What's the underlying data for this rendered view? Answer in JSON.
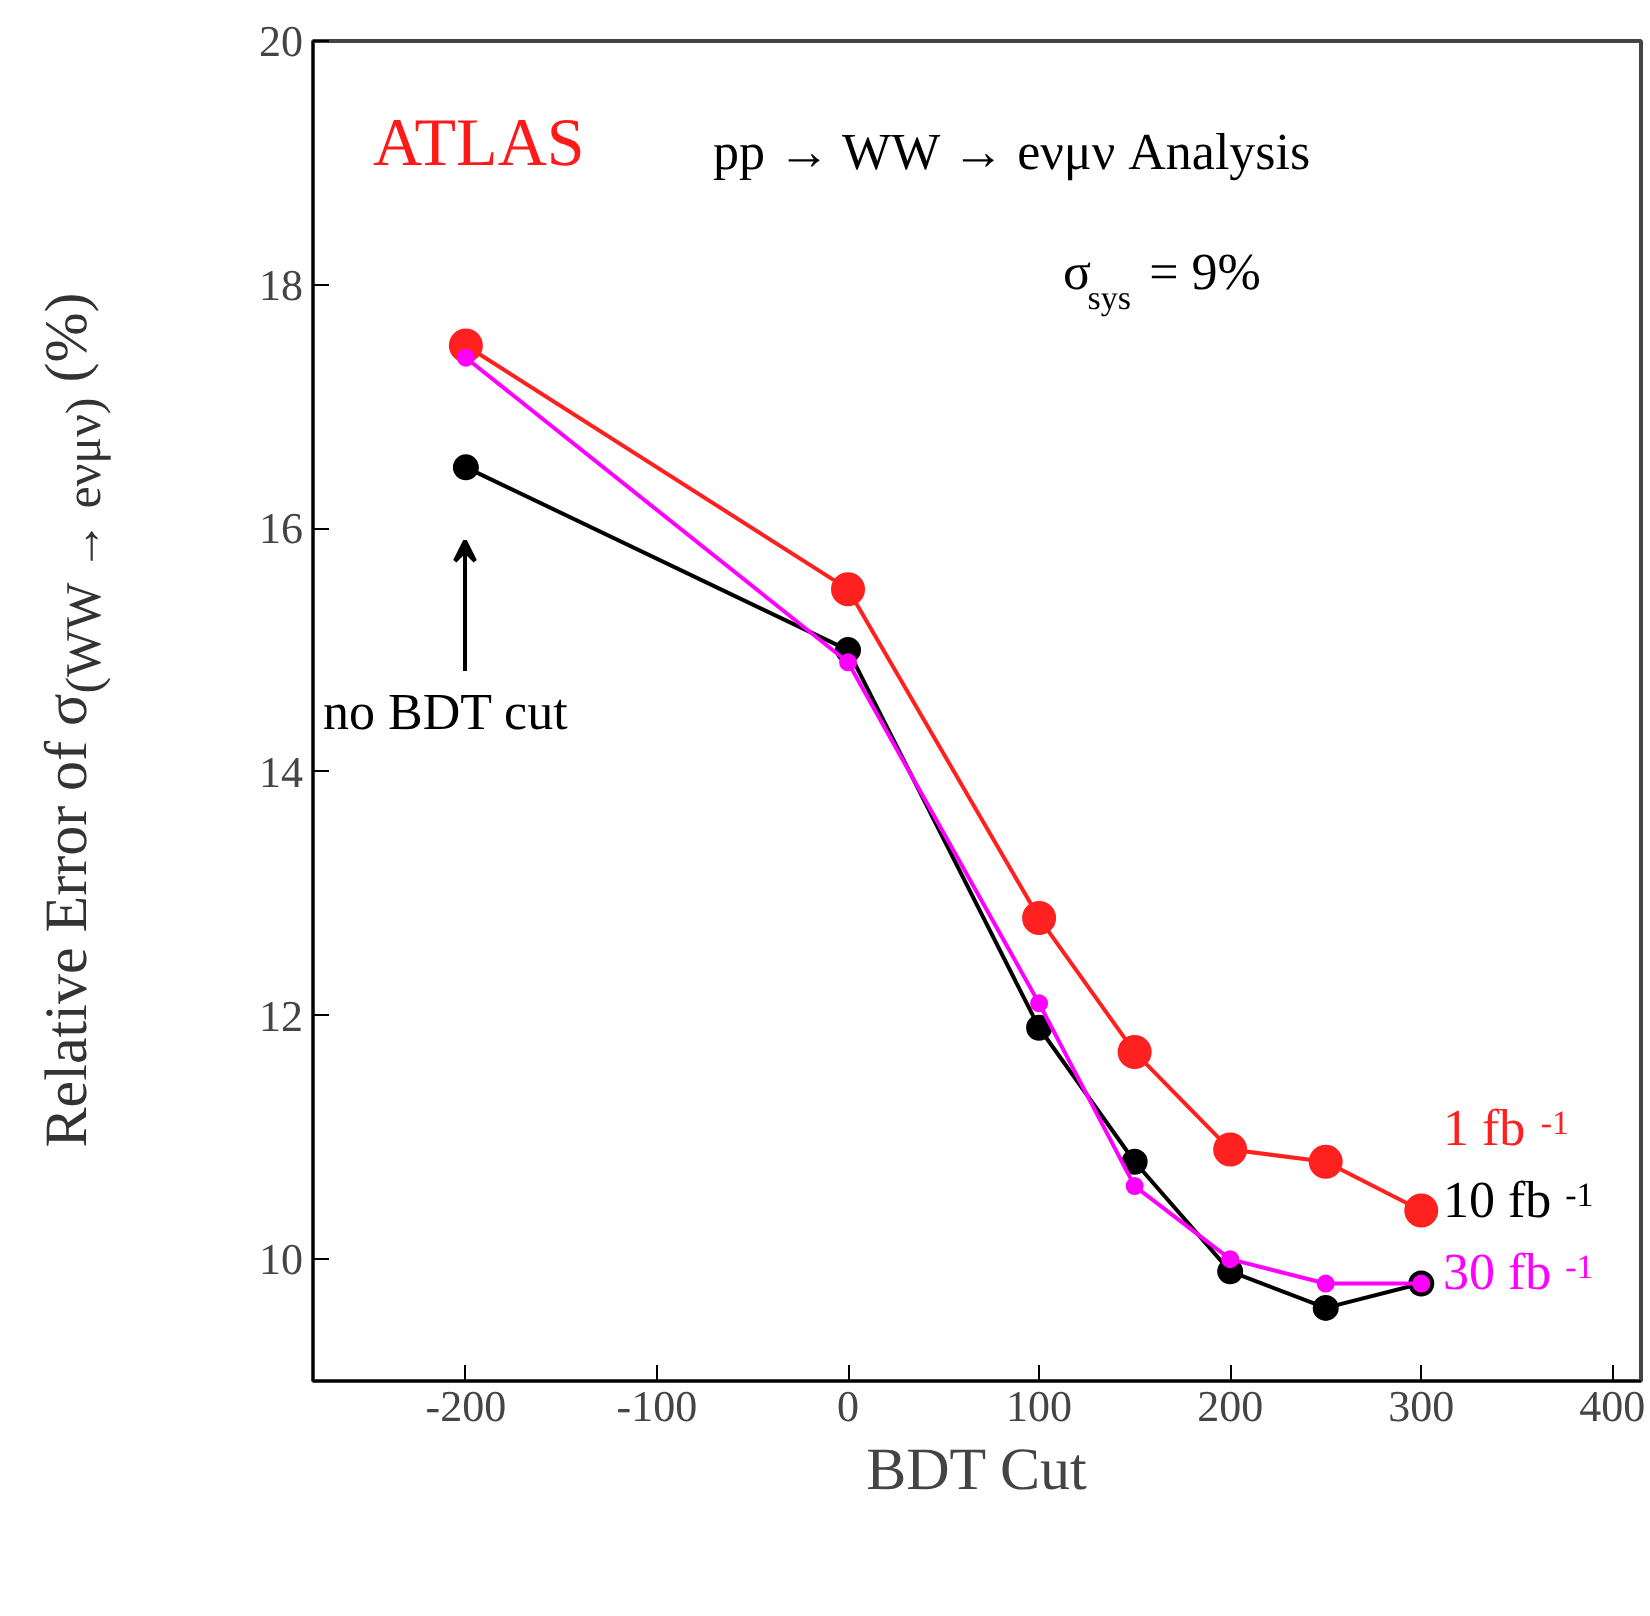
{
  "chart_data": {
    "type": "line",
    "title": "ATLAS",
    "subtitle": "pp → WW → eνμν Analysis",
    "xlabel": "BDT Cut",
    "ylabel": "Relative Error of σ$_{(WW → eνμν)}$ (%)",
    "x": [
      -200,
      0,
      100,
      150,
      200,
      250,
      300
    ],
    "series": [
      {
        "name": "1 fb$^{-1}$",
        "color": "#ff2020",
        "values": [
          17.5,
          15.5,
          12.8,
          11.7,
          10.9,
          10.8,
          10.4
        ]
      },
      {
        "name": "10 fb$^{-1}$",
        "color": "#000000",
        "values": [
          16.5,
          15.0,
          11.9,
          10.8,
          9.9,
          9.6,
          9.8
        ]
      },
      {
        "name": "30 fb$^{-1}$",
        "color": "#ff00ff",
        "values": [
          17.4,
          14.9,
          12.1,
          10.6,
          10.0,
          9.8,
          9.8
        ]
      }
    ],
    "xlim": [
      -280,
      415
    ],
    "ylim": [
      9,
      20
    ],
    "xticks": [
      -200,
      -100,
      0,
      100,
      200,
      300,
      400
    ],
    "yticks": [
      10,
      12,
      14,
      16,
      18,
      20
    ],
    "annotations": [
      "σ$_{sys}$ = 9%",
      "no BDT cut"
    ],
    "marker": "circle",
    "line_style": "solid",
    "grid": false
  }
}
